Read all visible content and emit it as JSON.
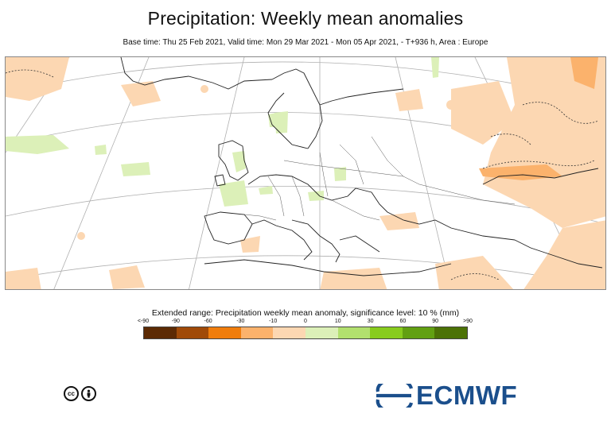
{
  "header": {
    "title": "Precipitation: Weekly mean anomalies",
    "subtitle": "Base time: Thu 25 Feb 2021, Valid time: Mon 29 Mar 2021 - Mon 05 Apr 2021, - T+936 h, Area : Europe"
  },
  "legend": {
    "title": "Extended range: Precipitation weekly mean anomaly, significance level: 10 % (mm)",
    "labels": [
      "<-90",
      "-90",
      "-60",
      "-30",
      "-10",
      "0",
      "10",
      "30",
      "60",
      "90",
      ">90"
    ],
    "colors": [
      "#5c2a04",
      "#a04a08",
      "#f07d0c",
      "#fbb26c",
      "#fcd7b2",
      "#dcf0b8",
      "#b2e06e",
      "#88cc1e",
      "#62a012",
      "#4c7206"
    ]
  },
  "footer": {
    "license_badges": [
      "cc",
      "by"
    ],
    "logo_text": "ECMWF",
    "logo_icon": "ecmwf-waves-icon"
  }
}
